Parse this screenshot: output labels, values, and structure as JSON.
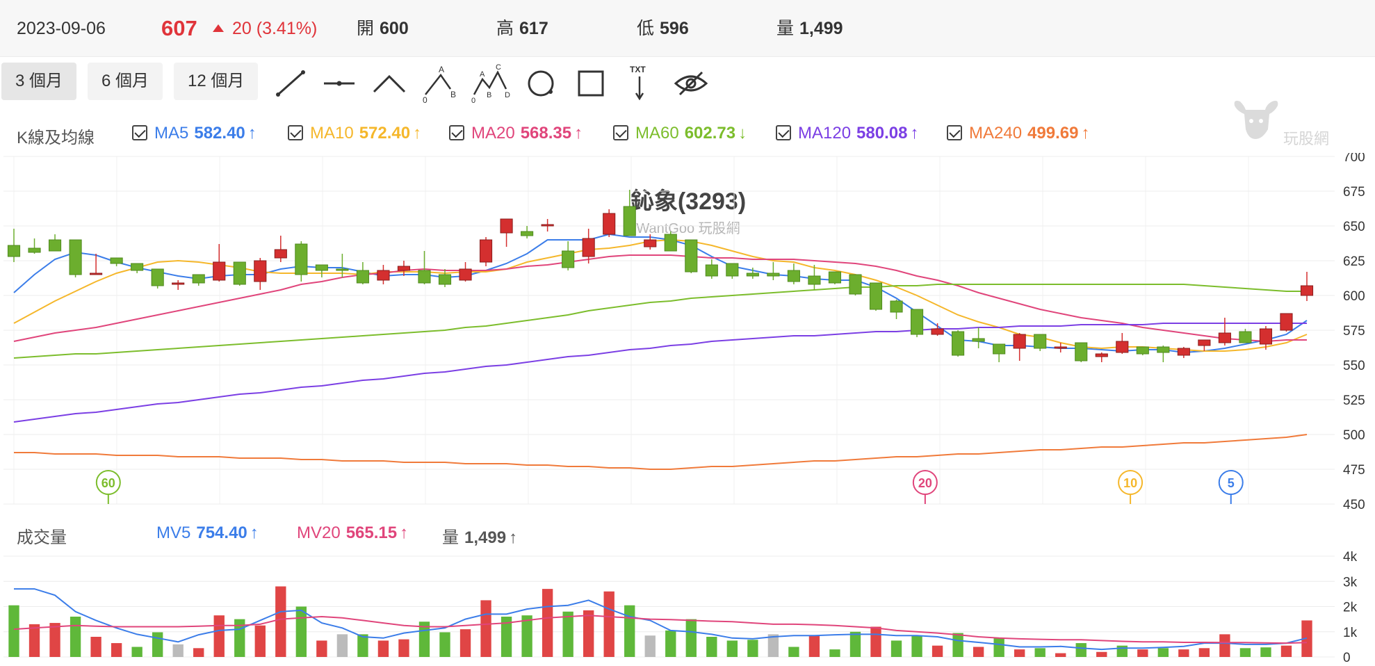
{
  "quote": {
    "date": "2023-09-06",
    "price": "607",
    "change": "20 (3.41%)",
    "open_label": "開",
    "open": "600",
    "high_label": "高",
    "high": "617",
    "low_label": "低",
    "low": "596",
    "volume_label": "量",
    "volume": "1,499"
  },
  "toolbar": {
    "ranges": [
      "3 個月",
      "6 個月",
      "12 個月"
    ],
    "active_range": "3 個月",
    "tools": [
      "trend-line-icon",
      "horizontal-line-icon",
      "angle-line-icon",
      "abc-wave-icon",
      "abcd-wave-icon",
      "circle-icon",
      "rectangle-icon",
      "text-arrow-icon",
      "hide-eye-icon"
    ],
    "text_tool_label": "TXT",
    "wave_labels": {
      "a": "A",
      "b": "B",
      "c": "C",
      "d": "D",
      "zero": "0"
    }
  },
  "kline_legend": {
    "title": "K線及均線",
    "items": [
      {
        "label": "MA5",
        "value": "582.40",
        "arrow": "↑",
        "color": "#3b7de9"
      },
      {
        "label": "MA10",
        "value": "572.40",
        "arrow": "↑",
        "color": "#f5b72b"
      },
      {
        "label": "MA20",
        "value": "568.35",
        "arrow": "↑",
        "color": "#e0457b"
      },
      {
        "label": "MA60",
        "value": "602.73",
        "arrow": "↓",
        "color": "#7cbd2c"
      },
      {
        "label": "MA120",
        "value": "580.08",
        "arrow": "↑",
        "color": "#7b3fe4"
      },
      {
        "label": "MA240",
        "value": "499.69",
        "arrow": "↑",
        "color": "#f07a3a"
      }
    ]
  },
  "volume_legend": {
    "title": "成交量",
    "items": [
      {
        "label": "MV5",
        "value": "754.40",
        "arrow": "↑",
        "color": "#3b7de9"
      },
      {
        "label": "MV20",
        "value": "565.15",
        "arrow": "↑",
        "color": "#e0457b"
      },
      {
        "label": "量",
        "value": "1,499",
        "arrow": "↑",
        "color": "#555555"
      }
    ]
  },
  "stock": {
    "name": "鈊象(3293)",
    "source": "WantGoo 玩股網"
  },
  "watermark": {
    "text": "玩股網"
  },
  "colors": {
    "up": "#d42f2f",
    "down": "#6cae2e",
    "flat": "#bbbbbb"
  },
  "chart_data": [
    {
      "type": "candlestick",
      "ylim": [
        450,
        700
      ],
      "yticks": [
        "700",
        "675",
        "650",
        "625",
        "600",
        "575",
        "550",
        "525",
        "500",
        "475",
        "450"
      ],
      "candles": [
        {
          "o": 636,
          "h": 648,
          "l": 624,
          "c": 628
        },
        {
          "o": 634,
          "h": 641,
          "l": 630,
          "c": 631
        },
        {
          "o": 640,
          "h": 644,
          "l": 632,
          "c": 632
        },
        {
          "o": 640,
          "h": 640,
          "l": 613,
          "c": 615
        },
        {
          "o": 616,
          "h": 630,
          "l": 615,
          "c": 616
        },
        {
          "o": 627,
          "h": 627,
          "l": 621,
          "c": 623
        },
        {
          "o": 623,
          "h": 623,
          "l": 616,
          "c": 618
        },
        {
          "o": 619,
          "h": 619,
          "l": 605,
          "c": 607
        },
        {
          "o": 609,
          "h": 611,
          "l": 604,
          "c": 609
        },
        {
          "o": 615,
          "h": 615,
          "l": 607,
          "c": 609
        },
        {
          "o": 611,
          "h": 637,
          "l": 610,
          "c": 624
        },
        {
          "o": 624,
          "h": 624,
          "l": 607,
          "c": 608
        },
        {
          "o": 610,
          "h": 627,
          "l": 604,
          "c": 625
        },
        {
          "o": 627,
          "h": 643,
          "l": 624,
          "c": 633
        },
        {
          "o": 637,
          "h": 639,
          "l": 610,
          "c": 615
        },
        {
          "o": 622,
          "h": 622,
          "l": 613,
          "c": 618
        },
        {
          "o": 619,
          "h": 630,
          "l": 613,
          "c": 618
        },
        {
          "o": 618,
          "h": 624,
          "l": 608,
          "c": 609
        },
        {
          "o": 611,
          "h": 622,
          "l": 608,
          "c": 618
        },
        {
          "o": 618,
          "h": 625,
          "l": 614,
          "c": 621
        },
        {
          "o": 618,
          "h": 632,
          "l": 608,
          "c": 609
        },
        {
          "o": 615,
          "h": 619,
          "l": 606,
          "c": 608
        },
        {
          "o": 611,
          "h": 624,
          "l": 610,
          "c": 619
        },
        {
          "o": 624,
          "h": 642,
          "l": 621,
          "c": 640
        },
        {
          "o": 645,
          "h": 655,
          "l": 635,
          "c": 655
        },
        {
          "o": 646,
          "h": 650,
          "l": 641,
          "c": 643
        },
        {
          "o": 651,
          "h": 655,
          "l": 646,
          "c": 651
        },
        {
          "o": 632,
          "h": 639,
          "l": 618,
          "c": 620
        },
        {
          "o": 628,
          "h": 648,
          "l": 623,
          "c": 641
        },
        {
          "o": 644,
          "h": 662,
          "l": 642,
          "c": 659
        },
        {
          "o": 664,
          "h": 676,
          "l": 643,
          "c": 643
        },
        {
          "o": 635,
          "h": 644,
          "l": 633,
          "c": 640
        },
        {
          "o": 644,
          "h": 646,
          "l": 632,
          "c": 632
        },
        {
          "o": 640,
          "h": 640,
          "l": 616,
          "c": 617
        },
        {
          "o": 622,
          "h": 626,
          "l": 612,
          "c": 614
        },
        {
          "o": 623,
          "h": 623,
          "l": 612,
          "c": 614
        },
        {
          "o": 616,
          "h": 620,
          "l": 612,
          "c": 614
        },
        {
          "o": 616,
          "h": 624,
          "l": 611,
          "c": 614
        },
        {
          "o": 618,
          "h": 623,
          "l": 608,
          "c": 610
        },
        {
          "o": 614,
          "h": 622,
          "l": 604,
          "c": 608
        },
        {
          "o": 617,
          "h": 617,
          "l": 608,
          "c": 609
        },
        {
          "o": 615,
          "h": 615,
          "l": 600,
          "c": 601
        },
        {
          "o": 609,
          "h": 609,
          "l": 589,
          "c": 590
        },
        {
          "o": 596,
          "h": 597,
          "l": 583,
          "c": 588
        },
        {
          "o": 590,
          "h": 590,
          "l": 570,
          "c": 572
        },
        {
          "o": 572,
          "h": 580,
          "l": 571,
          "c": 576
        },
        {
          "o": 574,
          "h": 575,
          "l": 556,
          "c": 557
        },
        {
          "o": 569,
          "h": 577,
          "l": 562,
          "c": 567
        },
        {
          "o": 565,
          "h": 565,
          "l": 552,
          "c": 558
        },
        {
          "o": 562,
          "h": 573,
          "l": 553,
          "c": 572
        },
        {
          "o": 572,
          "h": 572,
          "l": 560,
          "c": 562
        },
        {
          "o": 563,
          "h": 566,
          "l": 559,
          "c": 563
        },
        {
          "o": 566,
          "h": 566,
          "l": 552,
          "c": 553
        },
        {
          "o": 556,
          "h": 559,
          "l": 552,
          "c": 558
        },
        {
          "o": 559,
          "h": 573,
          "l": 558,
          "c": 567
        },
        {
          "o": 563,
          "h": 563,
          "l": 557,
          "c": 558
        },
        {
          "o": 563,
          "h": 564,
          "l": 552,
          "c": 559
        },
        {
          "o": 557,
          "h": 563,
          "l": 555,
          "c": 562
        },
        {
          "o": 564,
          "h": 568,
          "l": 560,
          "c": 568
        },
        {
          "o": 566,
          "h": 584,
          "l": 564,
          "c": 573
        },
        {
          "o": 574,
          "h": 576,
          "l": 566,
          "c": 566
        },
        {
          "o": 565,
          "h": 578,
          "l": 561,
          "c": 576
        },
        {
          "o": 575,
          "h": 587,
          "l": 574,
          "c": 587
        },
        {
          "o": 600,
          "h": 617,
          "l": 596,
          "c": 607
        }
      ],
      "ma5": [
        602,
        615,
        626,
        631,
        629,
        624,
        620,
        617,
        614,
        612,
        614,
        615,
        615,
        619,
        621,
        620,
        620,
        617,
        614,
        615,
        615,
        613,
        614,
        618,
        623,
        630,
        640,
        640,
        640,
        644,
        642,
        642,
        640,
        636,
        628,
        621,
        618,
        615,
        614,
        612,
        611,
        611,
        606,
        598,
        588,
        578,
        568,
        567,
        564,
        564,
        563,
        562,
        562,
        561,
        560,
        561,
        561,
        559,
        560,
        562,
        565,
        568,
        572,
        582
      ],
      "ma10": [
        580,
        588,
        596,
        603,
        610,
        616,
        620,
        624,
        625,
        624,
        622,
        620,
        617,
        616,
        616,
        616,
        616,
        615,
        617,
        617,
        617,
        616,
        617,
        617,
        619,
        624,
        627,
        630,
        633,
        634,
        636,
        639,
        640,
        639,
        636,
        632,
        628,
        625,
        624,
        620,
        618,
        615,
        611,
        606,
        600,
        593,
        586,
        581,
        577,
        572,
        570,
        566,
        563,
        562,
        563,
        563,
        562,
        561,
        560,
        560,
        561,
        563,
        566,
        572
      ],
      "ma20": [
        567,
        570,
        573,
        575,
        577,
        580,
        583,
        586,
        589,
        592,
        595,
        598,
        601,
        604,
        608,
        610,
        613,
        615,
        616,
        618,
        619,
        618,
        618,
        618,
        619,
        621,
        622,
        624,
        626,
        628,
        629,
        629,
        629,
        628,
        627,
        627,
        626,
        626,
        626,
        625,
        624,
        623,
        621,
        618,
        614,
        611,
        607,
        602,
        598,
        594,
        590,
        587,
        584,
        582,
        580,
        577,
        575,
        573,
        571,
        569,
        568,
        567,
        568,
        568
      ],
      "ma60": [
        555,
        556,
        557,
        558,
        558,
        559,
        560,
        561,
        562,
        563,
        564,
        565,
        566,
        567,
        568,
        569,
        570,
        571,
        572,
        573,
        574,
        575,
        577,
        578,
        580,
        582,
        584,
        586,
        589,
        591,
        593,
        595,
        596,
        598,
        599,
        600,
        601,
        602,
        603,
        604,
        605,
        606,
        606,
        607,
        607,
        608,
        608,
        608,
        608,
        608,
        608,
        608,
        608,
        608,
        608,
        608,
        608,
        608,
        607,
        606,
        605,
        604,
        603,
        603
      ],
      "ma120": [
        509,
        511,
        513,
        515,
        516,
        518,
        520,
        522,
        523,
        525,
        527,
        529,
        530,
        532,
        534,
        535,
        537,
        539,
        540,
        542,
        544,
        545,
        547,
        549,
        550,
        552,
        554,
        556,
        557,
        559,
        561,
        562,
        564,
        565,
        567,
        568,
        569,
        570,
        571,
        571,
        572,
        573,
        574,
        574,
        575,
        576,
        576,
        577,
        577,
        578,
        578,
        578,
        579,
        579,
        579,
        579,
        580,
        580,
        580,
        580,
        580,
        580,
        580,
        580
      ],
      "ma240": [
        487,
        487,
        486,
        486,
        486,
        485,
        485,
        485,
        484,
        484,
        484,
        483,
        483,
        483,
        482,
        482,
        481,
        481,
        481,
        480,
        480,
        480,
        479,
        479,
        479,
        478,
        478,
        477,
        477,
        476,
        476,
        475,
        475,
        476,
        477,
        477,
        478,
        479,
        480,
        481,
        481,
        482,
        483,
        484,
        484,
        485,
        486,
        486,
        487,
        488,
        489,
        489,
        490,
        491,
        491,
        492,
        493,
        494,
        494,
        495,
        496,
        497,
        498,
        500
      ],
      "markers": [
        {
          "label": "60",
          "index": 4.6,
          "color": "#7cbd2c"
        },
        {
          "label": "20",
          "index": 44.4,
          "color": "#e0457b"
        },
        {
          "label": "10",
          "index": 54.4,
          "color": "#f5b72b"
        },
        {
          "label": "5",
          "index": 59.3,
          "color": "#3b7de9"
        }
      ]
    },
    {
      "type": "bar",
      "ylim": [
        0,
        4
      ],
      "yticks": [
        "4k",
        "3k",
        "2k",
        "1k",
        "0"
      ],
      "volumes": [
        2.05,
        1.3,
        1.35,
        1.6,
        0.8,
        0.55,
        0.4,
        0.98,
        0.5,
        0.35,
        1.65,
        1.5,
        1.25,
        2.8,
        2.0,
        0.65,
        0.9,
        0.9,
        0.65,
        0.7,
        1.4,
        0.98,
        1.1,
        2.25,
        1.6,
        1.65,
        2.7,
        1.8,
        1.85,
        2.6,
        2.05,
        0.85,
        1.05,
        1.5,
        0.8,
        0.65,
        0.68,
        0.9,
        0.4,
        0.85,
        0.3,
        1.0,
        1.2,
        0.65,
        0.85,
        0.45,
        0.95,
        0.4,
        0.75,
        0.3,
        0.35,
        0.15,
        0.55,
        0.2,
        0.45,
        0.3,
        0.35,
        0.3,
        0.35,
        0.9,
        0.35,
        0.38,
        0.45,
        1.45
      ],
      "volume_dir": [
        "d",
        "u",
        "u",
        "d",
        "u",
        "u",
        "d",
        "d",
        "f",
        "u",
        "u",
        "d",
        "u",
        "u",
        "d",
        "u",
        "f",
        "d",
        "u",
        "u",
        "d",
        "d",
        "u",
        "u",
        "d",
        "d",
        "u",
        "d",
        "u",
        "u",
        "d",
        "f",
        "d",
        "d",
        "d",
        "d",
        "d",
        "f",
        "d",
        "u",
        "d",
        "d",
        "u",
        "d",
        "d",
        "u",
        "d",
        "u",
        "d",
        "u",
        "d",
        "u",
        "d",
        "u",
        "d",
        "u",
        "d",
        "u",
        "u",
        "u",
        "d",
        "d",
        "u",
        "u"
      ],
      "mv5": [
        2.7,
        2.7,
        2.45,
        1.8,
        1.45,
        1.15,
        0.9,
        0.75,
        0.6,
        0.88,
        1.05,
        1.1,
        1.45,
        1.8,
        1.85,
        1.35,
        1.15,
        0.8,
        0.75,
        0.95,
        1.05,
        1.15,
        1.5,
        1.7,
        1.7,
        1.9,
        2.0,
        2.05,
        2.25,
        1.9,
        1.6,
        1.45,
        1.05,
        1.0,
        0.9,
        0.75,
        0.72,
        0.8,
        0.85,
        0.85,
        0.88,
        0.9,
        0.9,
        0.85,
        0.85,
        0.8,
        0.65,
        0.58,
        0.5,
        0.4,
        0.4,
        0.42,
        0.35,
        0.3,
        0.35,
        0.35,
        0.38,
        0.42,
        0.55,
        0.55,
        0.5,
        0.5,
        0.55,
        0.75
      ],
      "mv20": [
        1.1,
        1.15,
        1.2,
        1.25,
        1.22,
        1.2,
        1.2,
        1.2,
        1.2,
        1.22,
        1.25,
        1.25,
        1.3,
        1.5,
        1.55,
        1.6,
        1.55,
        1.45,
        1.35,
        1.25,
        1.2,
        1.2,
        1.25,
        1.3,
        1.35,
        1.45,
        1.55,
        1.6,
        1.65,
        1.6,
        1.55,
        1.5,
        1.48,
        1.45,
        1.42,
        1.4,
        1.35,
        1.3,
        1.3,
        1.28,
        1.25,
        1.2,
        1.15,
        1.05,
        1.0,
        0.95,
        0.88,
        0.8,
        0.75,
        0.72,
        0.7,
        0.68,
        0.68,
        0.65,
        0.62,
        0.6,
        0.6,
        0.58,
        0.58,
        0.57,
        0.57,
        0.56,
        0.55,
        0.57
      ]
    }
  ]
}
